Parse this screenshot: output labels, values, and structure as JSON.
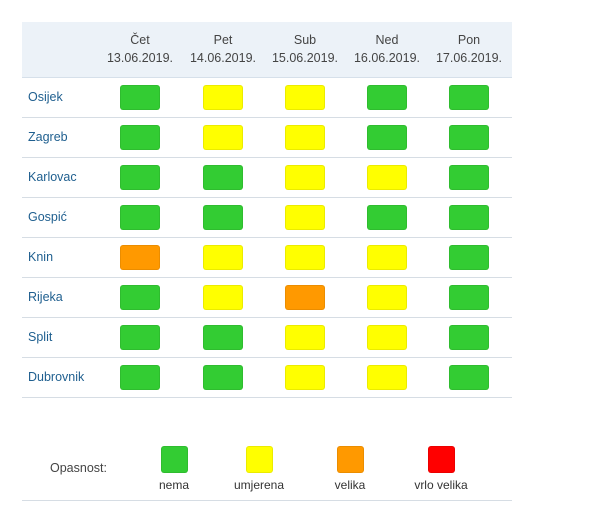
{
  "days": [
    {
      "name": "Čet",
      "date": "13.06.2019."
    },
    {
      "name": "Pet",
      "date": "14.06.2019."
    },
    {
      "name": "Sub",
      "date": "15.06.2019."
    },
    {
      "name": "Ned",
      "date": "16.06.2019."
    },
    {
      "name": "Pon",
      "date": "17.06.2019."
    }
  ],
  "levels": {
    "nema": "#33cc33",
    "umjerena": "#ffff00",
    "velika": "#ff9900",
    "vrlo_velika": "#ff0000"
  },
  "rows": [
    {
      "city": "Osijek",
      "levels": [
        "nema",
        "umjerena",
        "umjerena",
        "nema",
        "nema"
      ]
    },
    {
      "city": "Zagreb",
      "levels": [
        "nema",
        "umjerena",
        "umjerena",
        "nema",
        "nema"
      ]
    },
    {
      "city": "Karlovac",
      "levels": [
        "nema",
        "nema",
        "umjerena",
        "umjerena",
        "nema"
      ]
    },
    {
      "city": "Gospić",
      "levels": [
        "nema",
        "nema",
        "umjerena",
        "nema",
        "nema"
      ]
    },
    {
      "city": "Knin",
      "levels": [
        "velika",
        "umjerena",
        "umjerena",
        "umjerena",
        "nema"
      ]
    },
    {
      "city": "Rijeka",
      "levels": [
        "nema",
        "umjerena",
        "velika",
        "umjerena",
        "nema"
      ]
    },
    {
      "city": "Split",
      "levels": [
        "nema",
        "nema",
        "umjerena",
        "umjerena",
        "nema"
      ]
    },
    {
      "city": "Dubrovnik",
      "levels": [
        "nema",
        "nema",
        "umjerena",
        "umjerena",
        "nema"
      ]
    }
  ],
  "legend": {
    "title": "Opasnost:",
    "items": [
      {
        "key": "nema",
        "label": "nema"
      },
      {
        "key": "umjerena",
        "label": "umjerena"
      },
      {
        "key": "velika",
        "label": "velika"
      },
      {
        "key": "vrlo_velika",
        "label": "vrlo velika"
      }
    ]
  }
}
